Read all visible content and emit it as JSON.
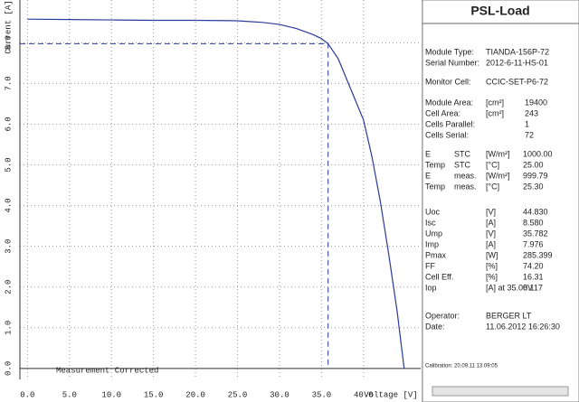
{
  "chart_data": {
    "type": "line",
    "y_label": "Current [A]",
    "x_label": "Voltage [V]",
    "annotation": "Measurement Corrected",
    "x": [
      0,
      5,
      10,
      15,
      20,
      25,
      28,
      30,
      32,
      34,
      35,
      35.782,
      37,
      38,
      39,
      40,
      41,
      42,
      43,
      44,
      44.83
    ],
    "series": [
      {
        "name": "I-V",
        "color": "#2b3b9c",
        "values": [
          8.58,
          8.57,
          8.56,
          8.55,
          8.55,
          8.54,
          8.5,
          8.45,
          8.35,
          8.2,
          8.1,
          7.976,
          7.6,
          7.1,
          6.6,
          6.1,
          5.2,
          4.1,
          2.8,
          1.4,
          0
        ]
      }
    ],
    "mpp": {
      "x": 35.782,
      "y": 7.976,
      "color": "#2b3b9c"
    },
    "xlim": [
      -0.9,
      46.8
    ],
    "ylim": [
      -0.27,
      9.05
    ],
    "grid": true,
    "xticks": [
      {
        "value": 0,
        "label": "0.0"
      },
      {
        "value": 5,
        "label": "5.0"
      },
      {
        "value": 10,
        "label": "10.0"
      },
      {
        "value": 15,
        "label": "15.0"
      },
      {
        "value": 20,
        "label": "20.0"
      },
      {
        "value": 25,
        "label": "25.0"
      },
      {
        "value": 30,
        "label": "30.0"
      },
      {
        "value": 35,
        "label": "35.0"
      },
      {
        "value": 40,
        "label": "40.0"
      }
    ],
    "yticks": [
      {
        "value": 0,
        "label": "0.0"
      },
      {
        "value": 1,
        "label": "1.0"
      },
      {
        "value": 2,
        "label": "2.0"
      },
      {
        "value": 3,
        "label": "3.0"
      },
      {
        "value": 4,
        "label": "4.0"
      },
      {
        "value": 5,
        "label": "5.0"
      },
      {
        "value": 6,
        "label": "6.0"
      },
      {
        "value": 7,
        "label": "7.0"
      },
      {
        "value": 8,
        "label": "8.0"
      }
    ]
  },
  "panel": {
    "title": "PSL-Load",
    "sections": [
      [
        {
          "label": "Module Type:",
          "value": "TIANDA-156P-72"
        },
        {
          "label": "Serial Number:",
          "value": "2012-6-11-HS-01"
        }
      ],
      [
        {
          "label": "Monitor Cell:",
          "value": "CCIC-SET-P6-72"
        }
      ],
      [
        {
          "label": "Module Area:",
          "unit": "[cm²]",
          "value": "19400"
        },
        {
          "label": "Cell Area:",
          "unit": "[cm²]",
          "value": "243"
        },
        {
          "label": "Cells Parallel:",
          "value": "1"
        },
        {
          "label": "Cells Serial:",
          "value": "72"
        }
      ],
      [
        {
          "label": "E",
          "qual": "STC",
          "unit": "[W/m²]",
          "value": "1000.00"
        },
        {
          "label": "Temp",
          "qual": "STC",
          "unit": "[°C]",
          "value": "25.00"
        },
        {
          "label": "E",
          "qual": "meas.",
          "unit": "[W/m²]",
          "value": "999.79"
        },
        {
          "label": "Temp",
          "qual": "meas.",
          "unit": "[°C]",
          "value": "25.30"
        }
      ],
      [
        {
          "label": "Uoc",
          "unit": "[V]",
          "value": "44.830"
        },
        {
          "label": "Isc",
          "unit": "[A]",
          "value": "8.580"
        },
        {
          "label": "Ump",
          "unit": "[V]",
          "value": "35.782"
        },
        {
          "label": "Imp",
          "unit": "[A]",
          "value": "7.976"
        },
        {
          "label": "Pmax",
          "unit": "[W]",
          "value": "285.399"
        },
        {
          "label": "FF",
          "unit": "[%]",
          "value": "74.20"
        },
        {
          "label": "Cell Eff.",
          "unit": "[%]",
          "value": "16.31"
        },
        {
          "label": "Iop",
          "unit": "[A] at 35.00V",
          "value": "8.117"
        }
      ],
      [
        {
          "label": "Operator:",
          "value": "BERGER LT"
        },
        {
          "label": "Date:",
          "value": "11.06.2012 16:26:30"
        }
      ]
    ],
    "footer": "Calibration: 20.09.11 13:09:05"
  }
}
